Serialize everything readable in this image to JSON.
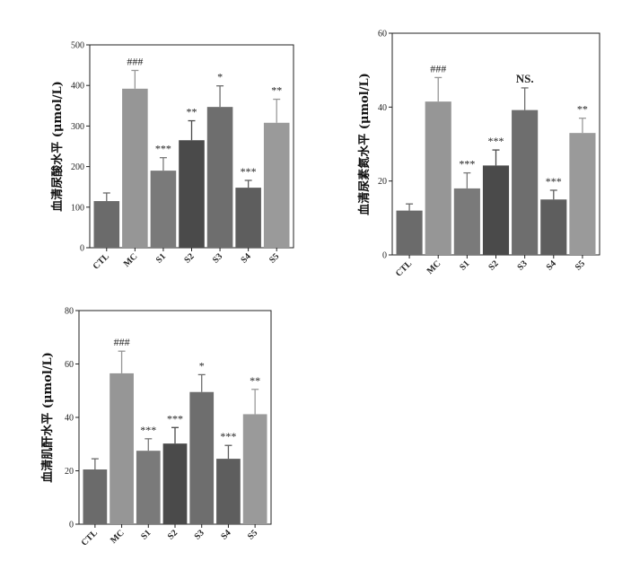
{
  "chart_data": [
    {
      "type": "bar",
      "categories": [
        "CTL",
        "MC",
        "S1",
        "S2",
        "S3",
        "S4",
        "S5"
      ],
      "values": [
        115,
        392,
        190,
        265,
        347,
        148,
        308
      ],
      "errors": [
        20,
        45,
        32,
        48,
        52,
        18,
        58
      ],
      "annotations": [
        "",
        "###",
        "***",
        "**",
        "*",
        "***",
        "**"
      ],
      "ylabel": "血清尿酸水平 (μmol/L)",
      "ylim": [
        0,
        500
      ],
      "yticks": [
        0,
        100,
        200,
        300,
        400,
        500
      ],
      "bar_colors": [
        "#6b6b6b",
        "#969696",
        "#7a7a7a",
        "#4a4a4a",
        "#6e6e6e",
        "#5e5e5e",
        "#9a9a9a"
      ]
    },
    {
      "type": "bar",
      "categories": [
        "CTL",
        "MC",
        "S1",
        "S2",
        "S3",
        "S4",
        "S5"
      ],
      "values": [
        12,
        41.5,
        18,
        24.2,
        39.2,
        15,
        33
      ],
      "errors": [
        1.8,
        6.5,
        4.2,
        4.2,
        6,
        2.5,
        4
      ],
      "annotations": [
        "",
        "###",
        "***",
        "***",
        "NS.",
        "***",
        "**"
      ],
      "ylabel": "血清尿素氮水平 (μmol/L)",
      "ylim": [
        0,
        60
      ],
      "yticks": [
        0,
        20,
        40,
        60
      ],
      "bar_colors": [
        "#6b6b6b",
        "#969696",
        "#7a7a7a",
        "#4a4a4a",
        "#6e6e6e",
        "#5e5e5e",
        "#9a9a9a"
      ]
    },
    {
      "type": "bar",
      "categories": [
        "CTL",
        "MC",
        "S1",
        "S2",
        "S3",
        "S4",
        "S5"
      ],
      "values": [
        20.5,
        56.5,
        27.5,
        30.2,
        49.5,
        24.5,
        41.2
      ],
      "errors": [
        4,
        8.3,
        4.5,
        6,
        6.5,
        5,
        9.3
      ],
      "annotations": [
        "",
        "###",
        "***",
        "***",
        "*",
        "***",
        "**"
      ],
      "ylabel": "血清肌酐水平 (μmol/L)",
      "ylim": [
        0,
        80
      ],
      "yticks": [
        0,
        20,
        40,
        60,
        80
      ],
      "bar_colors": [
        "#6b6b6b",
        "#969696",
        "#7a7a7a",
        "#4a4a4a",
        "#6e6e6e",
        "#5e5e5e",
        "#9a9a9a"
      ]
    }
  ]
}
